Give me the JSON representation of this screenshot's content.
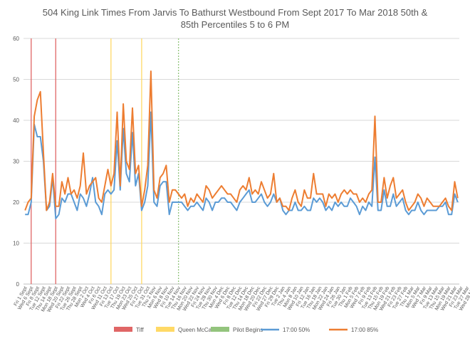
{
  "chart_data": {
    "type": "line",
    "title_line1": "504 King Link Times From Jarvis To Bathurst Westbound From Sept 2017 To Mar 2018 50th &",
    "title_line2": "85th Percentiles 5 to 6 PM",
    "ylim": [
      0,
      60
    ],
    "yticks": [
      0,
      10,
      20,
      30,
      40,
      50,
      60
    ],
    "grid": true,
    "legend_position": "bottom",
    "x_labels": [
      "Fri 1 Sept",
      "Wed 6 Sept",
      "Fri 8 Sept",
      "Tue 12 Sept",
      "Thu 14 Sept",
      "Mon 18 Sept",
      "Wed 20 Sept",
      "Fri 22 Sept",
      "Tue 26 Sept",
      "Thu 28 Sept",
      "Mon 2 Oct",
      "Wed 4 Oct",
      "Fri 6 Oct",
      "Wed 11 Oct",
      "Fri 13 Oct",
      "Tue 17 Oct",
      "Thu 19 Oct",
      "Mon 23 Oct",
      "Wed 25 Oct",
      "Fri 27 Oct",
      "Tue 31 Oct",
      "Thu 2 Nov",
      "Mon 6 Nov",
      "Wed 8 Nov",
      "Fri 10 Nov",
      "Tue 14 Nov",
      "Thu 16 Nov",
      "Mon 20 Nov",
      "Wed 22 Nov",
      "Fri 24 Nov",
      "Tue 28 Nov",
      "Thu 30 Nov",
      "Mon 4 Dec",
      "Wed 6 Dec",
      "Fri 8 Dec",
      "Tue 12 Dec",
      "Thu 14 Dec",
      "Mon 18 Dec",
      "Wed 20 Dec",
      "Fri 22 Dec",
      "Wed 27 Dec",
      "Fri 29 Dec",
      "Tue 2 Jan",
      "Thu 4 Jan",
      "Mon 8 Jan",
      "Wed 10 Jan",
      "Fri 12 Jan",
      "Tue 16 Jan",
      "Thu 18 Jan",
      "Mon 22 Jan",
      "Wed 24 Jan",
      "Fri 26 Jan",
      "Tue 30 Jan",
      "Thu 1 Feb",
      "Mon 5 Feb",
      "Wed 7 Feb",
      "Fri 9 Feb",
      "Tue 13 Feb",
      "Thu 15 Feb",
      "Mon 19 Feb",
      "Wed 21 Feb",
      "Fri 23 Feb",
      "Tue 27 Feb",
      "Thu 1 Mar",
      "Mon 5 Mar",
      "Wed 7 Mar",
      "Fri 9 Mar",
      "Tue 13 Mar",
      "Thu 15 Mar",
      "Mon 19 Mar",
      "Wed 21 Mar",
      "Fri 23 Mar",
      "Tue 27 Mar",
      "Wed 28 Mar"
    ],
    "points_per_label": 2,
    "series": [
      {
        "name": "17:00 50%",
        "color": "#5B9BD5",
        "values": [
          17,
          17,
          20,
          39,
          36,
          36,
          30,
          18,
          19,
          26,
          16,
          17,
          21,
          20,
          22,
          22,
          20,
          18,
          22,
          21,
          19,
          22,
          26,
          20,
          19,
          17,
          22,
          23,
          22,
          23,
          35,
          23,
          38,
          27,
          25,
          37,
          24,
          27,
          18,
          20,
          24,
          42,
          20,
          19,
          24,
          25,
          25,
          17,
          20,
          20,
          20,
          20,
          19,
          18,
          19,
          19,
          20,
          19,
          18,
          21,
          20,
          18,
          20,
          20,
          21,
          21,
          20,
          20,
          19,
          18,
          20,
          21,
          22,
          23,
          20,
          20,
          21,
          22,
          20,
          19,
          20,
          22,
          20,
          21,
          18,
          17,
          18,
          18,
          20,
          18,
          18,
          19,
          18,
          18,
          21,
          20,
          21,
          20,
          18,
          19,
          18,
          20,
          19,
          20,
          19,
          19,
          21,
          20,
          19,
          17,
          19,
          18,
          20,
          19,
          31,
          18,
          18,
          23,
          19,
          19,
          22,
          19,
          20,
          21,
          18,
          17,
          18,
          18,
          20,
          18,
          17,
          18,
          18,
          18,
          18,
          19,
          19,
          20,
          17,
          17,
          22,
          20
        ]
      },
      {
        "name": "17:00 85%",
        "color": "#ED7D31",
        "values": [
          18,
          20,
          21,
          41,
          45,
          47,
          32,
          18,
          20,
          27,
          19,
          19,
          25,
          22,
          26,
          22,
          23,
          21,
          24,
          32,
          22,
          24,
          25,
          26,
          21,
          20,
          24,
          28,
          24,
          27,
          42,
          24,
          44,
          30,
          28,
          43,
          27,
          29,
          19,
          23,
          29,
          52,
          23,
          21,
          26,
          27,
          29,
          20,
          23,
          23,
          22,
          21,
          22,
          19,
          21,
          20,
          22,
          21,
          20,
          24,
          23,
          21,
          22,
          23,
          24,
          23,
          22,
          22,
          21,
          20,
          23,
          24,
          23,
          26,
          22,
          23,
          22,
          25,
          23,
          21,
          22,
          27,
          20,
          21,
          19,
          19,
          18,
          21,
          23,
          20,
          19,
          23,
          21,
          21,
          27,
          22,
          22,
          22,
          19,
          22,
          21,
          22,
          20,
          22,
          23,
          22,
          23,
          22,
          22,
          20,
          21,
          20,
          22,
          23,
          41,
          20,
          20,
          26,
          21,
          24,
          26,
          21,
          22,
          23,
          20,
          18,
          19,
          20,
          22,
          21,
          19,
          21,
          20,
          19,
          19,
          19,
          20,
          21,
          19,
          18,
          25,
          21
        ]
      }
    ],
    "events": [
      {
        "name": "Tiff",
        "color": "#E06666",
        "start_label": "Wed 6 Sept",
        "end_label": "Mon 18 Sept"
      },
      {
        "name": "Queen McCaul",
        "color": "#FFD966",
        "start_label": "Fri 13 Oct",
        "end_label": "Fri 27 Oct"
      },
      {
        "name": "Pilot Begins",
        "color": "#93C47D",
        "start_label": "Tue 14 Nov",
        "end_label": null
      }
    ],
    "legend": [
      "Tiff",
      "Queen McCaul",
      "Pilot Begins",
      "17:00 50%",
      "17:00 85%"
    ]
  }
}
